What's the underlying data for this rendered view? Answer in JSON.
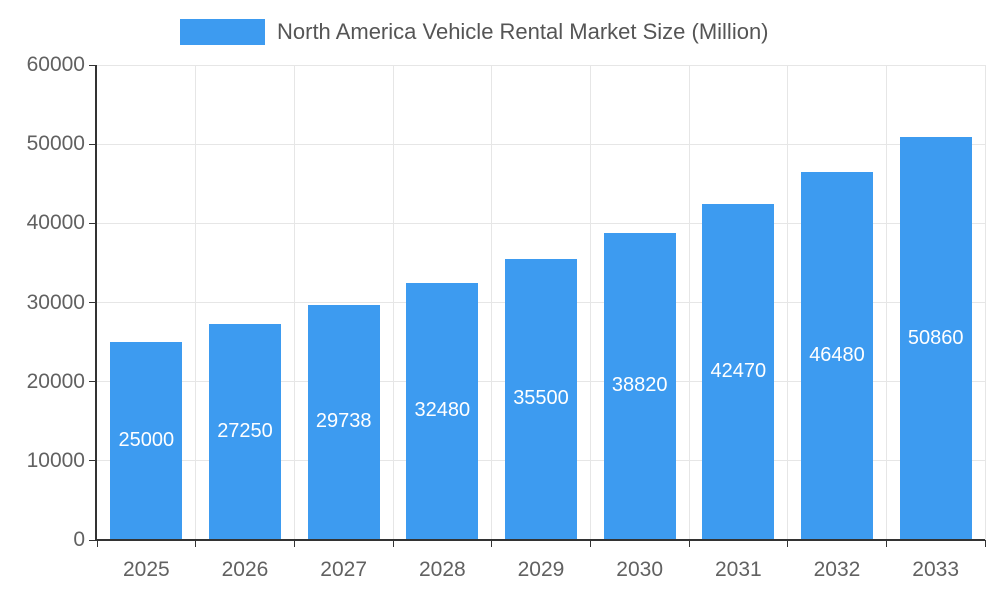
{
  "legend": {
    "swatch_color": "#3d9bf0"
  },
  "chart_data": {
    "type": "bar",
    "title": "North America Vehicle Rental Market Size (Million)",
    "categories": [
      "2025",
      "2026",
      "2027",
      "2028",
      "2029",
      "2030",
      "2031",
      "2032",
      "2033"
    ],
    "values": [
      25000,
      27250,
      29738,
      32480,
      35500,
      38820,
      42470,
      46480,
      50860
    ],
    "xlabel": "",
    "ylabel": "",
    "ylim": [
      0,
      60000
    ],
    "yticks": [
      0,
      10000,
      20000,
      30000,
      40000,
      50000,
      60000
    ],
    "bar_color": "#3d9bf0",
    "value_label_color": "#ffffff",
    "grid": true,
    "legend_position": "top"
  }
}
